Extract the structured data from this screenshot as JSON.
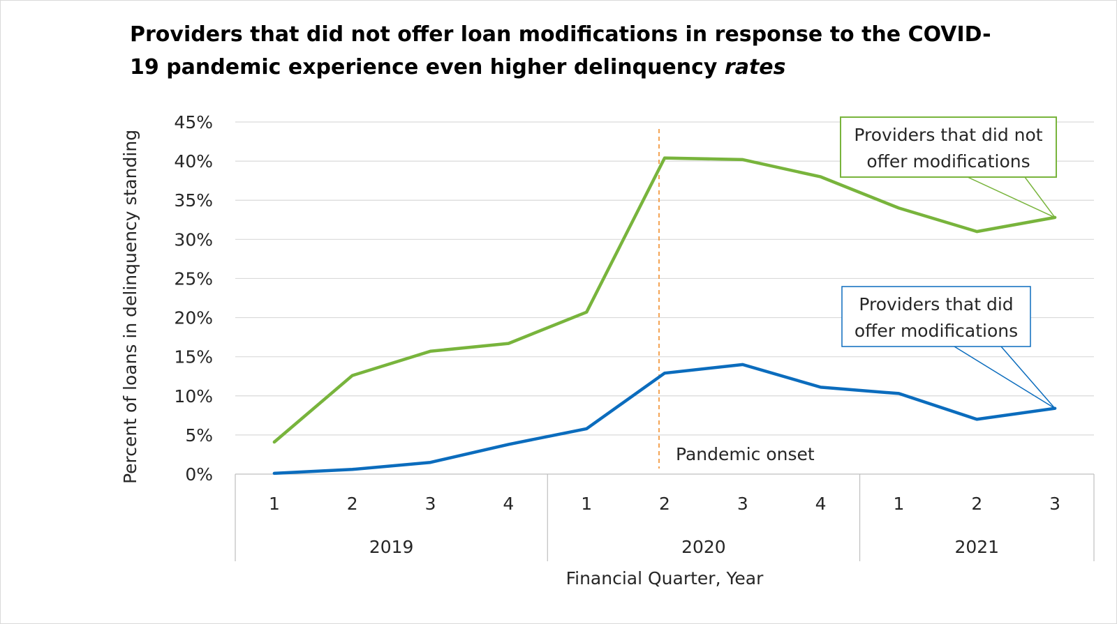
{
  "title_main": "Providers that did not offer loan modifications in response to the COVID-19 pandemic experience even higher delinquency",
  "title_emphasis": "rates",
  "chart_data": {
    "type": "line",
    "title": "Providers that did not offer loan modifications in response to the COVID-19 pandemic experience even higher delinquency rates",
    "xlabel": "Financial Quarter, Year",
    "ylabel": "Percent of loans in delinquency standing",
    "ylim": [
      0,
      45
    ],
    "y_ticks": [
      "0%",
      "5%",
      "10%",
      "15%",
      "20%",
      "25%",
      "30%",
      "35%",
      "40%",
      "45%"
    ],
    "grid": true,
    "categories": [
      "1",
      "2",
      "3",
      "4",
      "1",
      "2",
      "3",
      "4",
      "1",
      "2",
      "3"
    ],
    "year_groups": [
      {
        "label": "2019",
        "count": 4
      },
      {
        "label": "2020",
        "count": 4
      },
      {
        "label": "2021",
        "count": 3
      }
    ],
    "series": [
      {
        "name": "Providers that did not offer modifications",
        "color": "#78b43c",
        "values": [
          4.1,
          12.6,
          15.7,
          16.7,
          20.7,
          40.4,
          40.2,
          38.0,
          34.0,
          31.0,
          32.8
        ]
      },
      {
        "name": "Providers that did offer modifications",
        "color": "#0b6cbd",
        "values": [
          0.1,
          0.6,
          1.5,
          3.8,
          5.8,
          12.9,
          14.0,
          11.1,
          10.3,
          7.0,
          8.4
        ]
      }
    ],
    "annotation": {
      "text": "Pandemic onset",
      "category_index": 5,
      "color": "#f28e2b"
    }
  },
  "callouts": [
    {
      "lines": [
        "Providers that did not",
        "offer modifications"
      ],
      "border": "#78b43c"
    },
    {
      "lines": [
        "Providers that did",
        "offer modifications"
      ],
      "border": "#0b6cbd"
    }
  ]
}
